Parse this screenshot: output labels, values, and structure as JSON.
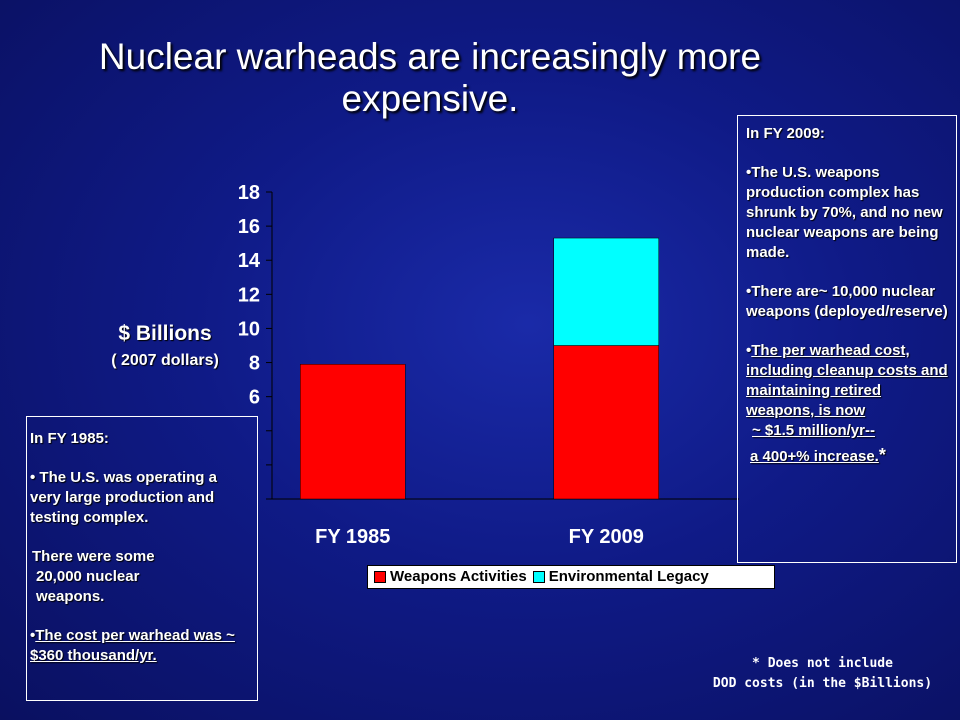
{
  "title_lines": [
    "Nuclear warheads are increasingly more",
    "expensive."
  ],
  "colors": {
    "weapons": "#ff0000",
    "legacy": "#00ffff",
    "background": "#0f1a86"
  },
  "chart_data": {
    "type": "bar",
    "stacked": true,
    "categories": [
      "FY 1985",
      "FY 2009"
    ],
    "series": [
      {
        "name": "Weapons Activities",
        "values": [
          7.9,
          9.0
        ]
      },
      {
        "name": "Environmental Legacy",
        "values": [
          0,
          6.3
        ]
      }
    ],
    "ylabel_line1": "$ Billions",
    "ylabel_line2": "( 2007 dollars)",
    "ylim": [
      0,
      18
    ],
    "yticks": [
      0,
      2,
      4,
      6,
      8,
      10,
      12,
      14,
      16,
      18
    ],
    "ytick_labels": [
      "",
      "",
      "",
      "6",
      "8",
      "10",
      "12",
      "14",
      "16",
      "18"
    ],
    "grid": false,
    "legend_position": "bottom"
  },
  "box_1985": {
    "heading": "In FY 1985:",
    "bullet1": "The  U.S. was operating a very large production and testing complex.",
    "line2": "There were some",
    "line3": "20,000  nuclear",
    "line4": "weapons.",
    "bullet2": "The cost per warhead was ~ $360 thousand/yr."
  },
  "box_2009": {
    "heading": "In FY 2009:",
    "bullet1": "The U.S. weapons production complex has shrunk by 70%, and no new nuclear weapons are being made.",
    "bullet2": "There are~ 10,000 nuclear weapons (deployed/reserve)",
    "bullet3": "The per warhead cost, including cleanup costs and maintaining retired weapons,  is now",
    "line_cost": "~ $1.5 million/yr--",
    "line_increase": "a 400+% increase.",
    "asterisk": "*"
  },
  "footnote_lines": [
    "* Does not include",
    "DOD costs (in the $Billions)"
  ]
}
